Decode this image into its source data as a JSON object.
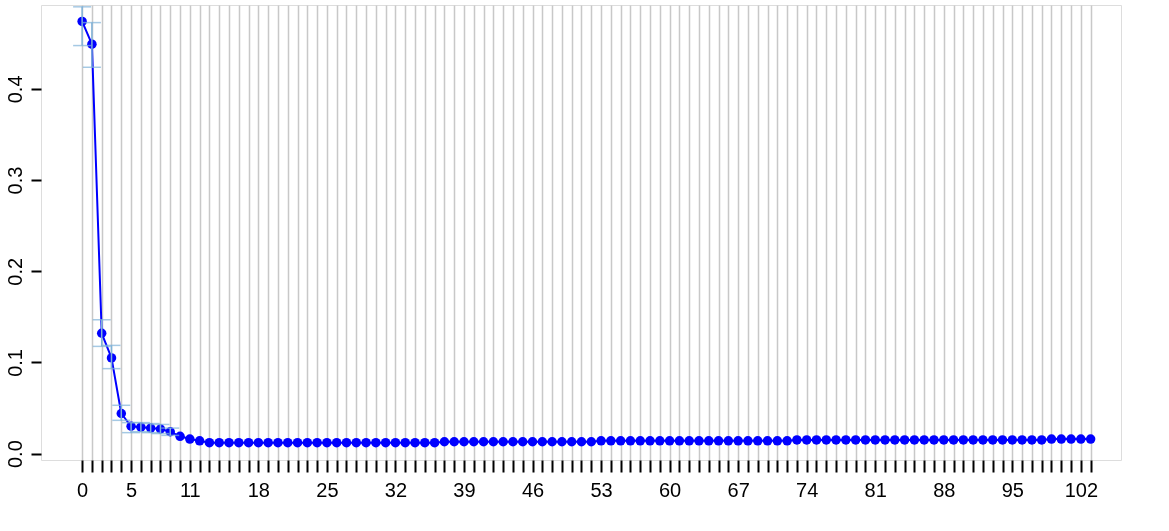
{
  "chart_data": {
    "type": "line",
    "x": [
      0,
      1,
      2,
      3,
      4,
      5,
      6,
      7,
      8,
      9,
      10,
      11,
      12,
      13,
      14,
      15,
      16,
      17,
      18,
      19,
      20,
      21,
      22,
      23,
      24,
      25,
      26,
      27,
      28,
      29,
      30,
      31,
      32,
      33,
      34,
      35,
      36,
      37,
      38,
      39,
      40,
      41,
      42,
      43,
      44,
      45,
      46,
      47,
      48,
      49,
      50,
      51,
      52,
      53,
      54,
      55,
      56,
      57,
      58,
      59,
      60,
      61,
      62,
      63,
      64,
      65,
      66,
      67,
      68,
      69,
      70,
      71,
      72,
      73,
      74,
      75,
      76,
      77,
      78,
      79,
      80,
      81,
      82,
      83,
      84,
      85,
      86,
      87,
      88,
      89,
      90,
      91,
      92,
      93,
      94,
      95,
      96,
      97,
      98,
      99,
      100,
      101,
      102,
      103
    ],
    "series": [
      {
        "color": "#0000ff",
        "values": [
          0.474,
          0.449,
          0.132,
          0.105,
          0.044,
          0.03,
          0.029,
          0.028,
          0.027,
          0.024,
          0.019,
          0.016,
          0.014,
          0.012,
          0.012,
          0.012,
          0.012,
          0.012,
          0.012,
          0.012,
          0.012,
          0.012,
          0.012,
          0.012,
          0.012,
          0.012,
          0.012,
          0.012,
          0.012,
          0.012,
          0.012,
          0.012,
          0.012,
          0.012,
          0.012,
          0.012,
          0.012,
          0.013,
          0.013,
          0.013,
          0.013,
          0.013,
          0.013,
          0.013,
          0.013,
          0.013,
          0.013,
          0.013,
          0.013,
          0.013,
          0.013,
          0.013,
          0.013,
          0.014,
          0.014,
          0.014,
          0.014,
          0.014,
          0.014,
          0.014,
          0.014,
          0.014,
          0.014,
          0.014,
          0.014,
          0.014,
          0.014,
          0.014,
          0.014,
          0.014,
          0.014,
          0.014,
          0.014,
          0.015,
          0.015,
          0.015,
          0.015,
          0.015,
          0.015,
          0.015,
          0.015,
          0.015,
          0.015,
          0.015,
          0.015,
          0.015,
          0.015,
          0.015,
          0.015,
          0.015,
          0.015,
          0.015,
          0.015,
          0.015,
          0.015,
          0.015,
          0.015,
          0.015,
          0.015,
          0.016,
          0.016,
          0.016,
          0.016,
          0.016
        ],
        "errors": [
          [
            0.4475,
            0.49
          ],
          [
            0.4237,
            0.4727
          ],
          [
            0.1176,
            0.1468
          ],
          [
            0.0932,
            0.1187
          ],
          [
            0.0365,
            0.053
          ],
          [
            0.023,
            0.034
          ],
          [
            0.024,
            0.034
          ],
          [
            0.023,
            0.033
          ],
          [
            0.022,
            0.032
          ],
          [
            0.02,
            0.028
          ],
          null,
          null,
          null,
          null,
          null,
          null,
          null,
          null,
          null,
          null,
          null,
          null,
          null,
          null,
          null,
          null,
          null,
          null,
          null,
          null,
          null,
          null,
          null,
          null,
          null,
          null,
          null,
          null,
          null,
          null,
          null,
          null,
          null,
          null,
          null,
          null,
          null,
          null,
          null,
          null,
          null,
          null,
          null,
          null,
          null,
          null,
          null,
          null,
          null,
          null,
          null,
          null,
          null,
          null,
          null,
          null,
          null,
          null,
          null,
          null,
          null,
          null,
          null,
          null,
          null,
          null,
          null,
          null,
          null,
          null,
          null,
          null,
          null,
          null,
          null,
          null,
          null,
          null,
          null,
          null,
          null,
          null,
          null,
          null,
          null,
          null,
          null,
          null,
          null,
          null,
          null,
          null,
          null,
          null
        ]
      }
    ],
    "xlim": [
      -4.2,
      106.1
    ],
    "xticks": [
      0,
      {
        "value": 1,
        "label": null
      },
      {
        "value": 2,
        "label": null
      },
      {
        "value": 3,
        "label": null
      },
      {
        "value": 4,
        "label": null
      },
      5,
      {
        "value": 6,
        "label": null
      },
      {
        "value": 7,
        "label": null
      },
      {
        "value": 8,
        "label": null
      },
      {
        "value": 9,
        "label": null
      },
      {
        "value": 10,
        "label": null
      },
      11,
      {
        "value": 12,
        "label": null
      },
      {
        "value": 13,
        "label": null
      },
      {
        "value": 14,
        "label": null
      },
      {
        "value": 15,
        "label": null
      },
      {
        "value": 16,
        "label": null
      },
      {
        "value": 17,
        "label": null
      },
      18,
      {
        "value": 19,
        "label": null
      },
      {
        "value": 20,
        "label": null
      },
      {
        "value": 21,
        "label": null
      },
      {
        "value": 22,
        "label": null
      },
      {
        "value": 23,
        "label": null
      },
      {
        "value": 24,
        "label": null
      },
      25,
      {
        "value": 26,
        "label": null
      },
      {
        "value": 27,
        "label": null
      },
      {
        "value": 28,
        "label": null
      },
      {
        "value": 29,
        "label": null
      },
      {
        "value": 30,
        "label": null
      },
      {
        "value": 31,
        "label": null
      },
      32,
      {
        "value": 33,
        "label": null
      },
      {
        "value": 34,
        "label": null
      },
      {
        "value": 35,
        "label": null
      },
      {
        "value": 36,
        "label": null
      },
      {
        "value": 37,
        "label": null
      },
      {
        "value": 38,
        "label": null
      },
      39,
      {
        "value": 40,
        "label": null
      },
      {
        "value": 41,
        "label": null
      },
      {
        "value": 42,
        "label": null
      },
      {
        "value": 43,
        "label": null
      },
      {
        "value": 44,
        "label": null
      },
      {
        "value": 45,
        "label": null
      },
      46,
      {
        "value": 47,
        "label": null
      },
      {
        "value": 48,
        "label": null
      },
      {
        "value": 49,
        "label": null
      },
      {
        "value": 50,
        "label": null
      },
      {
        "value": 51,
        "label": null
      },
      {
        "value": 52,
        "label": null
      },
      53,
      {
        "value": 54,
        "label": null
      },
      {
        "value": 55,
        "label": null
      },
      {
        "value": 56,
        "label": null
      },
      {
        "value": 57,
        "label": null
      },
      {
        "value": 58,
        "label": null
      },
      {
        "value": 59,
        "label": null
      },
      60,
      {
        "value": 61,
        "label": null
      },
      {
        "value": 62,
        "label": null
      },
      {
        "value": 63,
        "label": null
      },
      {
        "value": 64,
        "label": null
      },
      {
        "value": 65,
        "label": null
      },
      {
        "value": 66,
        "label": null
      },
      67,
      {
        "value": 68,
        "label": null
      },
      {
        "value": 69,
        "label": null
      },
      {
        "value": 70,
        "label": null
      },
      {
        "value": 71,
        "label": null
      },
      {
        "value": 72,
        "label": null
      },
      {
        "value": 73,
        "label": null
      },
      74,
      {
        "value": 75,
        "label": null
      },
      {
        "value": 76,
        "label": null
      },
      {
        "value": 77,
        "label": null
      },
      {
        "value": 78,
        "label": null
      },
      {
        "value": 79,
        "label": null
      },
      {
        "value": 80,
        "label": null
      },
      81,
      {
        "value": 82,
        "label": null
      },
      {
        "value": 83,
        "label": null
      },
      {
        "value": 84,
        "label": null
      },
      {
        "value": 85,
        "label": null
      },
      {
        "value": 86,
        "label": null
      },
      {
        "value": 87,
        "label": null
      },
      88,
      {
        "value": 89,
        "label": null
      },
      {
        "value": 90,
        "label": null
      },
      {
        "value": 91,
        "label": null
      },
      {
        "value": 92,
        "label": null
      },
      {
        "value": 93,
        "label": null
      },
      {
        "value": 94,
        "label": null
      },
      95,
      {
        "value": 96,
        "label": null
      },
      {
        "value": 97,
        "label": null
      },
      {
        "value": 98,
        "label": null
      },
      {
        "value": 99,
        "label": null
      },
      {
        "value": 100,
        "label": null
      },
      {
        "value": 101,
        "label": null
      },
      102,
      {
        "value": 103,
        "label": null
      }
    ],
    "ylim": [
      -0.007,
      0.492
    ],
    "yticks": [
      {
        "value": 0,
        "label": "0.0"
      },
      0.1,
      0.2,
      0.3,
      0.4
    ],
    "grid": "x",
    "marker": "circle",
    "line_style": "solid"
  }
}
